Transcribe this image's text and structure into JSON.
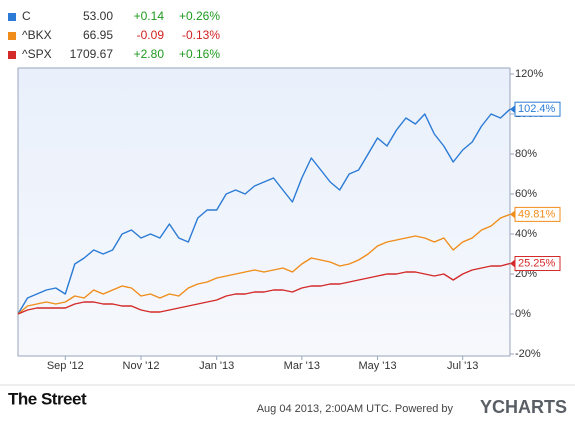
{
  "chart_data": {
    "type": "line",
    "categories": [
      null,
      null,
      null,
      null,
      null,
      "Sep '12",
      null,
      null,
      null,
      null,
      null,
      null,
      null,
      "Nov '12",
      null,
      null,
      null,
      null,
      null,
      null,
      null,
      "Jan '13",
      null,
      null,
      null,
      null,
      null,
      null,
      null,
      null,
      "Mar '13",
      null,
      null,
      null,
      null,
      null,
      null,
      null,
      "May '13",
      null,
      null,
      null,
      null,
      null,
      null,
      null,
      null,
      "Jul '13",
      null,
      null,
      null,
      null,
      null
    ],
    "series": [
      {
        "name": "C",
        "price": "53.00",
        "change": "+0.14",
        "change_pct": "+0.26%",
        "color": "#2b7bd6",
        "end_label": "102.4%",
        "values": [
          0,
          8,
          10,
          12,
          13,
          10,
          25,
          28,
          32,
          30,
          32,
          40,
          42,
          38,
          40,
          38,
          45,
          38,
          36,
          48,
          52,
          52,
          60,
          62,
          60,
          64,
          66,
          68,
          62,
          56,
          68,
          78,
          72,
          66,
          62,
          70,
          72,
          80,
          88,
          84,
          92,
          98,
          95,
          100,
          90,
          84,
          76,
          82,
          86,
          94,
          100,
          98,
          102.4
        ]
      },
      {
        "name": "^BKX",
        "price": "66.95",
        "change": "-0.09",
        "change_pct": "-0.13%",
        "color": "#f08c1a",
        "end_label": "49.81%",
        "values": [
          0,
          4,
          5,
          6,
          5,
          6,
          9,
          8,
          12,
          10,
          12,
          14,
          13,
          9,
          10,
          8,
          10,
          9,
          13,
          15,
          16,
          18,
          19,
          20,
          21,
          22,
          21,
          22,
          23,
          21,
          25,
          28,
          27,
          26,
          24,
          25,
          27,
          30,
          34,
          36,
          37,
          38,
          39,
          38,
          36,
          38,
          32,
          36,
          38,
          42,
          44,
          48,
          49.81
        ]
      },
      {
        "name": "^SPX",
        "price": "1709.67",
        "change": "+2.80",
        "change_pct": "+0.16%",
        "color": "#d42a2a",
        "end_label": "25.25%",
        "values": [
          0,
          2,
          3,
          3,
          3,
          3,
          5,
          6,
          6,
          5,
          5,
          4,
          4,
          2,
          1,
          1,
          2,
          3,
          4,
          5,
          6,
          7,
          9,
          10,
          10,
          11,
          11,
          12,
          12,
          11,
          13,
          14,
          14,
          15,
          15,
          16,
          17,
          18,
          19,
          20,
          20,
          21,
          21,
          20,
          19,
          20,
          17,
          20,
          22,
          23,
          24,
          24,
          25.25
        ]
      }
    ],
    "ylim": [
      -20,
      120
    ],
    "yticks": [
      {
        "value": -20,
        "label": "-20%"
      },
      {
        "value": 0,
        "label": "0%"
      },
      {
        "value": 20,
        "label": "20%"
      },
      {
        "value": 40,
        "label": "40%"
      },
      {
        "value": 60,
        "label": "60%"
      },
      {
        "value": 80,
        "label": "80%"
      },
      {
        "value": 100,
        "label": "100%"
      },
      {
        "value": 120,
        "label": "120%"
      }
    ],
    "grid": false
  },
  "footer": {
    "brand": "The Street",
    "timestamp": "Aug 04 2013, 2:00AM UTC.  Powered by",
    "provider": "YCHARTS"
  }
}
